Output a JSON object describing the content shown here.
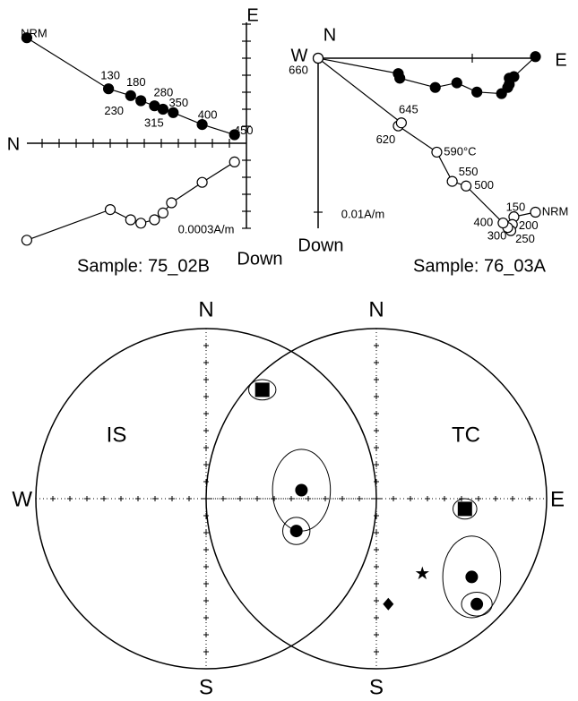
{
  "chart_data": [
    {
      "type": "zijderveld",
      "sample": "Sample: 75_02B",
      "labels": {
        "west": "N",
        "north": "E",
        "south": "Down"
      },
      "scale_label": "0.0003A/m",
      "steps": [
        "NRM",
        "130",
        "180",
        "230",
        "280",
        "315",
        "350",
        "400",
        "450"
      ],
      "label_series": 0,
      "series": [
        {
          "fill": "#000000",
          "x": [
            -12.9,
            -8.1,
            -6.8,
            -6.2,
            -5.4,
            -4.9,
            -4.3,
            -2.6,
            -0.7
          ],
          "values": [
            6.2,
            3.2,
            2.8,
            2.5,
            2.2,
            2.0,
            1.8,
            1.1,
            0.5
          ]
        },
        {
          "fill": "#ffffff",
          "x": [
            -12.9,
            -8.0,
            -6.8,
            -6.2,
            -5.4,
            -4.9,
            -4.4,
            -2.6,
            -0.7
          ],
          "values": [
            -5.7,
            -3.9,
            -4.5,
            -4.7,
            -4.5,
            -4.1,
            -3.5,
            -2.3,
            -1.1
          ]
        }
      ],
      "xticks": [
        -12,
        -11,
        -10,
        -9,
        -8,
        -7,
        -6,
        -5,
        -4,
        -3,
        -2,
        -1
      ],
      "yticks": [
        -5,
        -4,
        -3,
        -2,
        -1,
        1,
        2,
        3,
        4,
        5,
        6,
        7
      ]
    },
    {
      "type": "zijderveld",
      "sample": "Sample: 76_03A",
      "labels": {
        "west": "W",
        "north": "N",
        "east": "E",
        "south": "Down"
      },
      "scale_label": "0.01A/m",
      "steps": [
        "NRM",
        "150",
        "200",
        "250",
        "300",
        "400",
        "500",
        "550",
        "590°C",
        "620",
        "645",
        "660"
      ],
      "label_series": 1,
      "series": [
        {
          "fill": "#000000",
          "x": [
            1.41,
            1.27,
            1.24,
            1.24,
            1.23,
            1.19,
            1.03,
            0.9,
            0.76,
            0.53,
            0.52,
            0
          ],
          "values": [
            0.01,
            -0.12,
            -0.13,
            -0.17,
            -0.19,
            -0.23,
            -0.22,
            -0.16,
            -0.19,
            -0.13,
            -0.1,
            0
          ]
        },
        {
          "fill": "#ffffff",
          "x": [
            1.41,
            1.27,
            1.26,
            1.25,
            1.23,
            1.2,
            0.96,
            0.87,
            0.77,
            0.52,
            0.54,
            0
          ],
          "values": [
            -1.0,
            -1.03,
            -1.08,
            -1.12,
            -1.1,
            -1.07,
            -0.83,
            -0.8,
            -0.61,
            -0.44,
            -0.42,
            0
          ]
        }
      ],
      "xticks": [
        1
      ],
      "yticks": [
        -1
      ]
    },
    {
      "type": "stereonet",
      "label": "IS",
      "labels": {
        "north": "N",
        "south": "S",
        "west": "W"
      },
      "ticks": [
        -0.9,
        -0.8,
        -0.7,
        -0.6,
        -0.5,
        -0.4,
        -0.3,
        -0.2,
        -0.1,
        0.1,
        0.2,
        0.3,
        0.4,
        0.5,
        0.6,
        0.7,
        0.8,
        0.9
      ],
      "x": [
        0.33,
        0.56,
        0.53
      ],
      "values": [
        0.64,
        0.05,
        -0.19
      ],
      "symbol": [
        "square",
        "circle",
        "circle"
      ],
      "errors": [
        [
          0.08,
          0.06
        ],
        [
          0.17,
          0.24
        ],
        [
          0.08,
          0.08
        ]
      ]
    },
    {
      "type": "stereonet",
      "label": "TC",
      "labels": {
        "north": "N",
        "south": "S",
        "east": "E"
      },
      "ticks": [
        -0.9,
        -0.8,
        -0.7,
        -0.6,
        -0.5,
        -0.4,
        -0.3,
        -0.2,
        -0.1,
        0.1,
        0.2,
        0.3,
        0.4,
        0.5,
        0.6,
        0.7,
        0.8,
        0.9
      ],
      "x": [
        0.52,
        0.56,
        0.59,
        0.27,
        0.07
      ],
      "values": [
        -0.06,
        -0.46,
        -0.62,
        -0.44,
        -0.62
      ],
      "symbol": [
        "square",
        "circle",
        "circle",
        "star",
        "diamond"
      ],
      "errors": [
        [
          0.07,
          0.06
        ],
        [
          0.17,
          0.24
        ],
        [
          0.09,
          0.07
        ],
        null,
        null
      ]
    }
  ]
}
